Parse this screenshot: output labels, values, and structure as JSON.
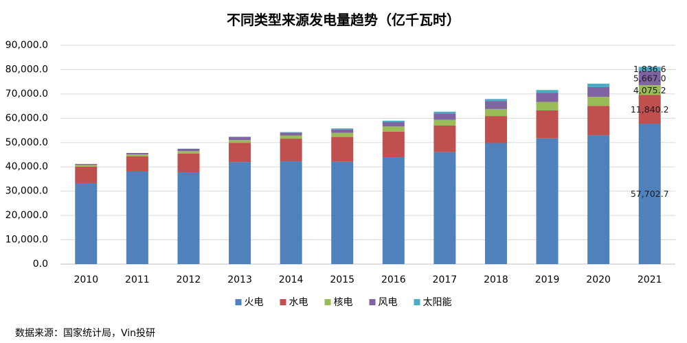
{
  "chart_data": {
    "type": "bar",
    "stacked": true,
    "title": "不同类型来源发电量趋势（亿千瓦时）",
    "categories": [
      "2010",
      "2011",
      "2012",
      "2013",
      "2014",
      "2015",
      "2016",
      "2017",
      "2018",
      "2019",
      "2020",
      "2021"
    ],
    "series": [
      {
        "name": "火电",
        "color": "#4F81BD",
        "values": [
          33300,
          38100,
          37800,
          42000,
          42300,
          42100,
          44000,
          46100,
          49800,
          51700,
          53000,
          57702.7
        ]
      },
      {
        "name": "水电",
        "color": "#C0504D",
        "values": [
          6800,
          6200,
          7700,
          7900,
          9300,
          10200,
          10500,
          10900,
          11100,
          11500,
          12100,
          11840.2
        ]
      },
      {
        "name": "核电",
        "color": "#9BBB59",
        "values": [
          700,
          800,
          970,
          1100,
          1300,
          1700,
          2100,
          2400,
          2900,
          3500,
          3700,
          4075.2
        ]
      },
      {
        "name": "风电",
        "color": "#8064A2",
        "values": [
          400,
          600,
          960,
          1300,
          1200,
          1400,
          1800,
          2600,
          3300,
          3700,
          4000,
          5667.0
        ]
      },
      {
        "name": "太阳能",
        "color": "#4BACC6",
        "values": [
          0,
          0,
          40,
          100,
          200,
          400,
          600,
          700,
          800,
          1200,
          1400,
          1836.6
        ]
      }
    ],
    "ylim": [
      0,
      90000
    ],
    "yticks": [
      0,
      10000,
      20000,
      30000,
      40000,
      50000,
      60000,
      70000,
      80000,
      90000
    ],
    "ytick_labels": [
      "0.0",
      "10,000.0",
      "20,000.0",
      "30,000.0",
      "40,000.0",
      "50,000.0",
      "60,000.0",
      "70,000.0",
      "80,000.0",
      "90,000.0"
    ],
    "grid": true,
    "legend": "bottom",
    "data_labels": [
      {
        "series_index": 0,
        "category_index": 11,
        "text": "57,702.7"
      },
      {
        "series_index": 1,
        "category_index": 11,
        "text": "11,840.2"
      },
      {
        "series_index": 2,
        "category_index": 11,
        "text": "4,075.2"
      },
      {
        "series_index": 3,
        "category_index": 11,
        "text": "5,667.0"
      },
      {
        "series_index": 4,
        "category_index": 11,
        "text": "1,836.6"
      }
    ]
  },
  "source": "数据来源：国家统计局，Vin投研"
}
